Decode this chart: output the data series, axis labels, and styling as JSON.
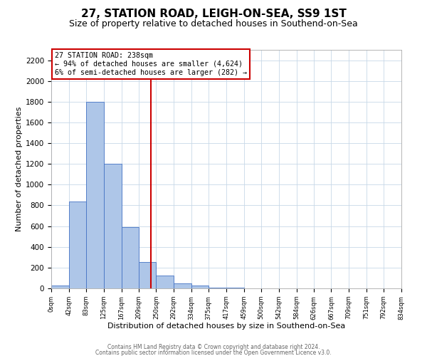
{
  "title": "27, STATION ROAD, LEIGH-ON-SEA, SS9 1ST",
  "subtitle": "Size of property relative to detached houses in Southend-on-Sea",
  "xlabel": "Distribution of detached houses by size in Southend-on-Sea",
  "ylabel": "Number of detached properties",
  "bin_edges": [
    0,
    42,
    83,
    125,
    167,
    209,
    250,
    292,
    334,
    375,
    417,
    459,
    500,
    542,
    584,
    626,
    667,
    709,
    751,
    792,
    834
  ],
  "bin_labels": [
    "0sqm",
    "42sqm",
    "83sqm",
    "125sqm",
    "167sqm",
    "209sqm",
    "250sqm",
    "292sqm",
    "334sqm",
    "375sqm",
    "417sqm",
    "459sqm",
    "500sqm",
    "542sqm",
    "584sqm",
    "626sqm",
    "667sqm",
    "709sqm",
    "751sqm",
    "792sqm",
    "834sqm"
  ],
  "counts": [
    25,
    840,
    1800,
    1200,
    590,
    255,
    125,
    45,
    30,
    10,
    5,
    2,
    2,
    0,
    2,
    0,
    1,
    0,
    1,
    0
  ],
  "bar_color": "#aec6e8",
  "bar_edge_color": "#4472c4",
  "property_line_x": 238,
  "property_line_color": "#cc0000",
  "annotation_line1": "27 STATION ROAD: 238sqm",
  "annotation_line2": "← 94% of detached houses are smaller (4,624)",
  "annotation_line3": "6% of semi-detached houses are larger (282) →",
  "ylim": [
    0,
    2300
  ],
  "yticks": [
    0,
    200,
    400,
    600,
    800,
    1000,
    1200,
    1400,
    1600,
    1800,
    2000,
    2200
  ],
  "footer_line1": "Contains HM Land Registry data © Crown copyright and database right 2024.",
  "footer_line2": "Contains public sector information licensed under the Open Government Licence v3.0.",
  "title_fontsize": 11,
  "subtitle_fontsize": 9,
  "background_color": "#ffffff",
  "grid_color": "#c8d8e8"
}
